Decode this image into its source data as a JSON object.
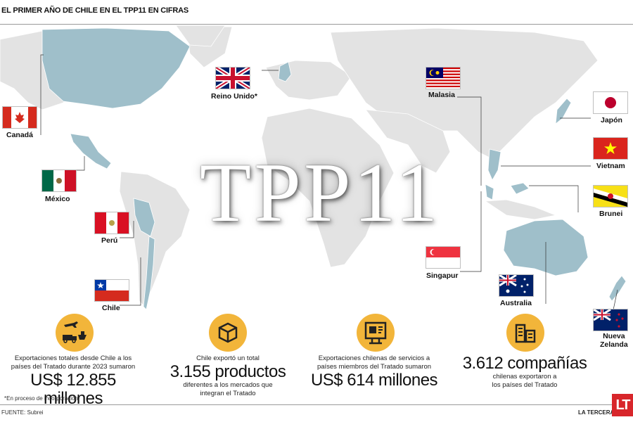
{
  "header": {
    "title": "EL PRIMER AÑO DE CHILE EN EL TPP11 EN CIFRAS"
  },
  "map": {
    "watermark": "TPP11"
  },
  "countries": {
    "canada": "Canadá",
    "mexico": "México",
    "peru": "Perú",
    "chile": "Chile",
    "uk": "Reino Unido*",
    "malaysia": "Malasia",
    "singapore": "Singapur",
    "japan": "Japón",
    "vietnam": "Vietnam",
    "brunei": "Brunei",
    "australia": "Australia",
    "nz_line1": "Nueva",
    "nz_line2": "Zelanda"
  },
  "stats": [
    {
      "icon": "transport-icon",
      "line1": "Exportaciones totales desde Chile a los",
      "line2": "países del Tratado durante 2023 sumaron",
      "big": "US$ 12.855 millones"
    },
    {
      "icon": "package-icon",
      "line1": "Chile exportó un total",
      "big": "3.155 productos",
      "line2": "diferentes a los mercados que",
      "line3": "integran el Tratado"
    },
    {
      "icon": "services-icon",
      "line1": "Exportaciones chilenas de servicios a",
      "line2": "países miembros del Tratado sumaron",
      "big": "US$ 614 millones"
    },
    {
      "icon": "buildings-icon",
      "big": "3.612 compañías",
      "line1": "chilenas exportaron a",
      "line2": "los países del Tratado"
    }
  ],
  "footer": {
    "note": "*En proceso de incorporación.",
    "source": "FUENTE: Subrei",
    "brand": "LA TERCERA",
    "logo": "LT"
  },
  "colors": {
    "land": "#e3e3e3",
    "member": "#9fbfca",
    "accent": "#f2b53a",
    "logo": "#d8262b"
  }
}
